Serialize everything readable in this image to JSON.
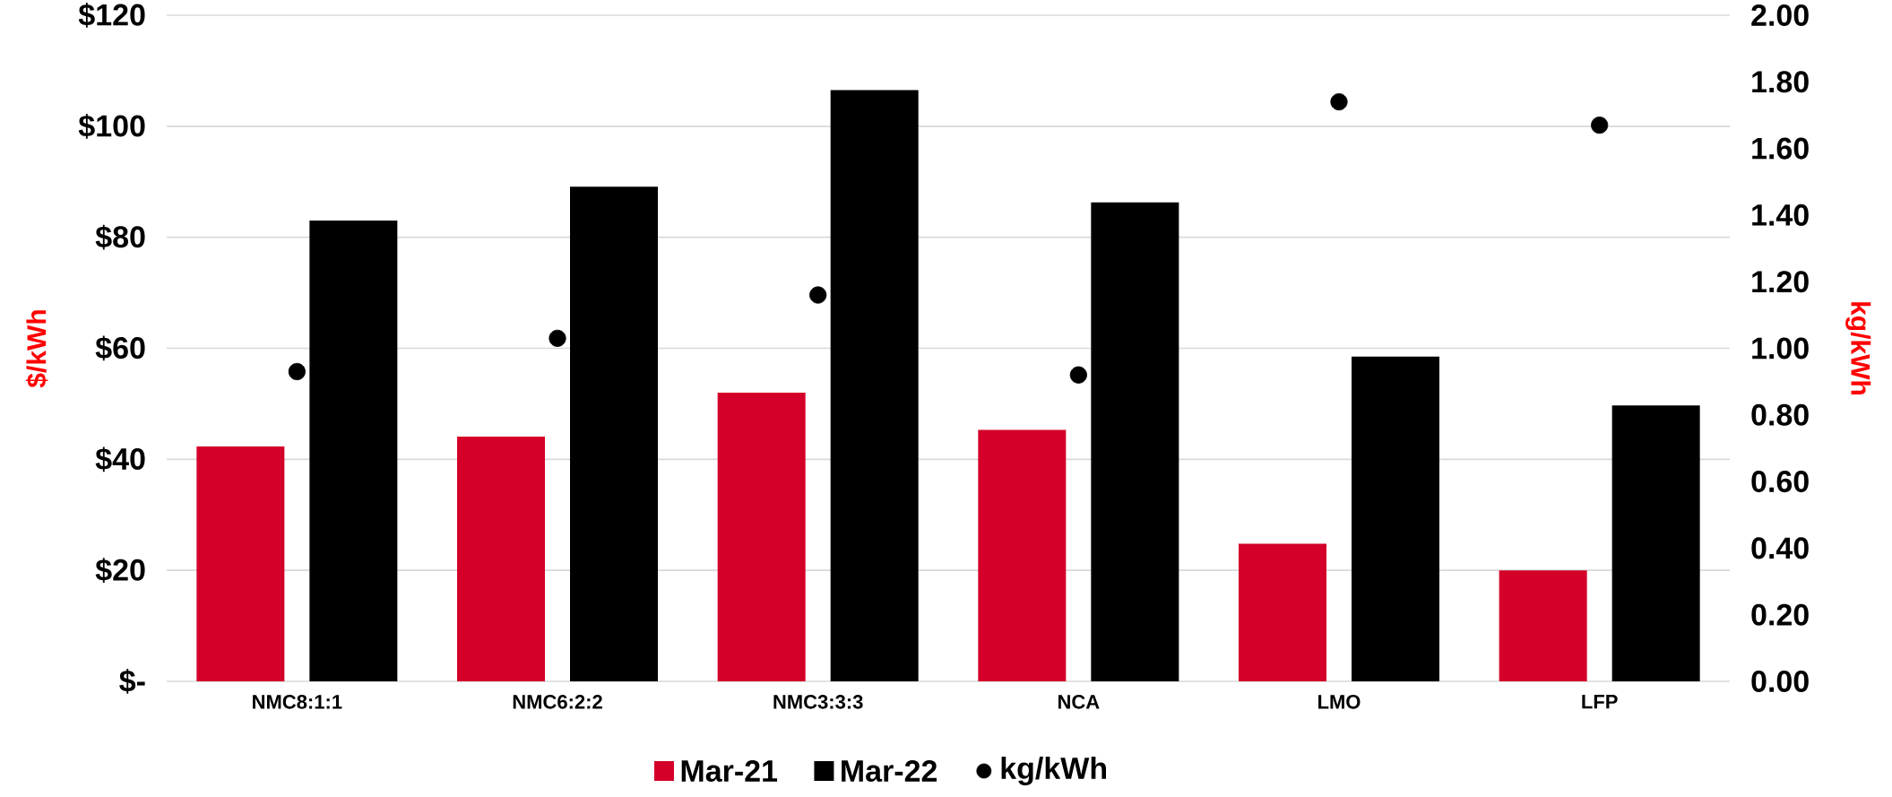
{
  "chart_data": {
    "type": "bar",
    "categories": [
      "NMC8:1:1",
      "NMC6:2:2",
      "NMC3:3:3",
      "NCA",
      "LMO",
      "LFP"
    ],
    "series": [
      {
        "name": "Mar-21",
        "color": "#d40029",
        "values": [
          42.3,
          44.1,
          52,
          45.3,
          24.8,
          20
        ]
      },
      {
        "name": "Mar-22",
        "color": "#000000",
        "values": [
          83,
          89.1,
          106.5,
          86.3,
          58.5,
          49.7
        ]
      },
      {
        "name": "kg/kWh",
        "type": "scatter",
        "axis": "y2",
        "marker": "circle",
        "color": "#000000",
        "values": [
          0.93,
          1.03,
          1.16,
          0.92,
          1.74,
          1.67
        ]
      }
    ],
    "ylabel": "$/kWh",
    "y2label": "kg/kWh",
    "ylim": [
      0,
      120
    ],
    "yticks": [
      {
        "value": 0,
        "label": "$-"
      },
      {
        "value": 20,
        "label": "$20"
      },
      {
        "value": 40,
        "label": "$40"
      },
      {
        "value": 60,
        "label": "$60"
      },
      {
        "value": 80,
        "label": "$80"
      },
      {
        "value": 100,
        "label": "$100"
      },
      {
        "value": 120,
        "label": "$120"
      }
    ],
    "y2lim": [
      0,
      2
    ],
    "y2ticks": [
      {
        "value": 0,
        "label": "0.00"
      },
      {
        "value": 0.2,
        "label": "0.20"
      },
      {
        "value": 0.4,
        "label": "0.40"
      },
      {
        "value": 0.6,
        "label": "0.60"
      },
      {
        "value": 0.8,
        "label": "0.80"
      },
      {
        "value": 1,
        "label": "1.00"
      },
      {
        "value": 1.2,
        "label": "1.20"
      },
      {
        "value": 1.4,
        "label": "1.40"
      },
      {
        "value": 1.6,
        "label": "1.60"
      },
      {
        "value": 1.8,
        "label": "1.80"
      },
      {
        "value": 2,
        "label": "2.00"
      }
    ],
    "grid": "y",
    "legend": "bottom"
  }
}
